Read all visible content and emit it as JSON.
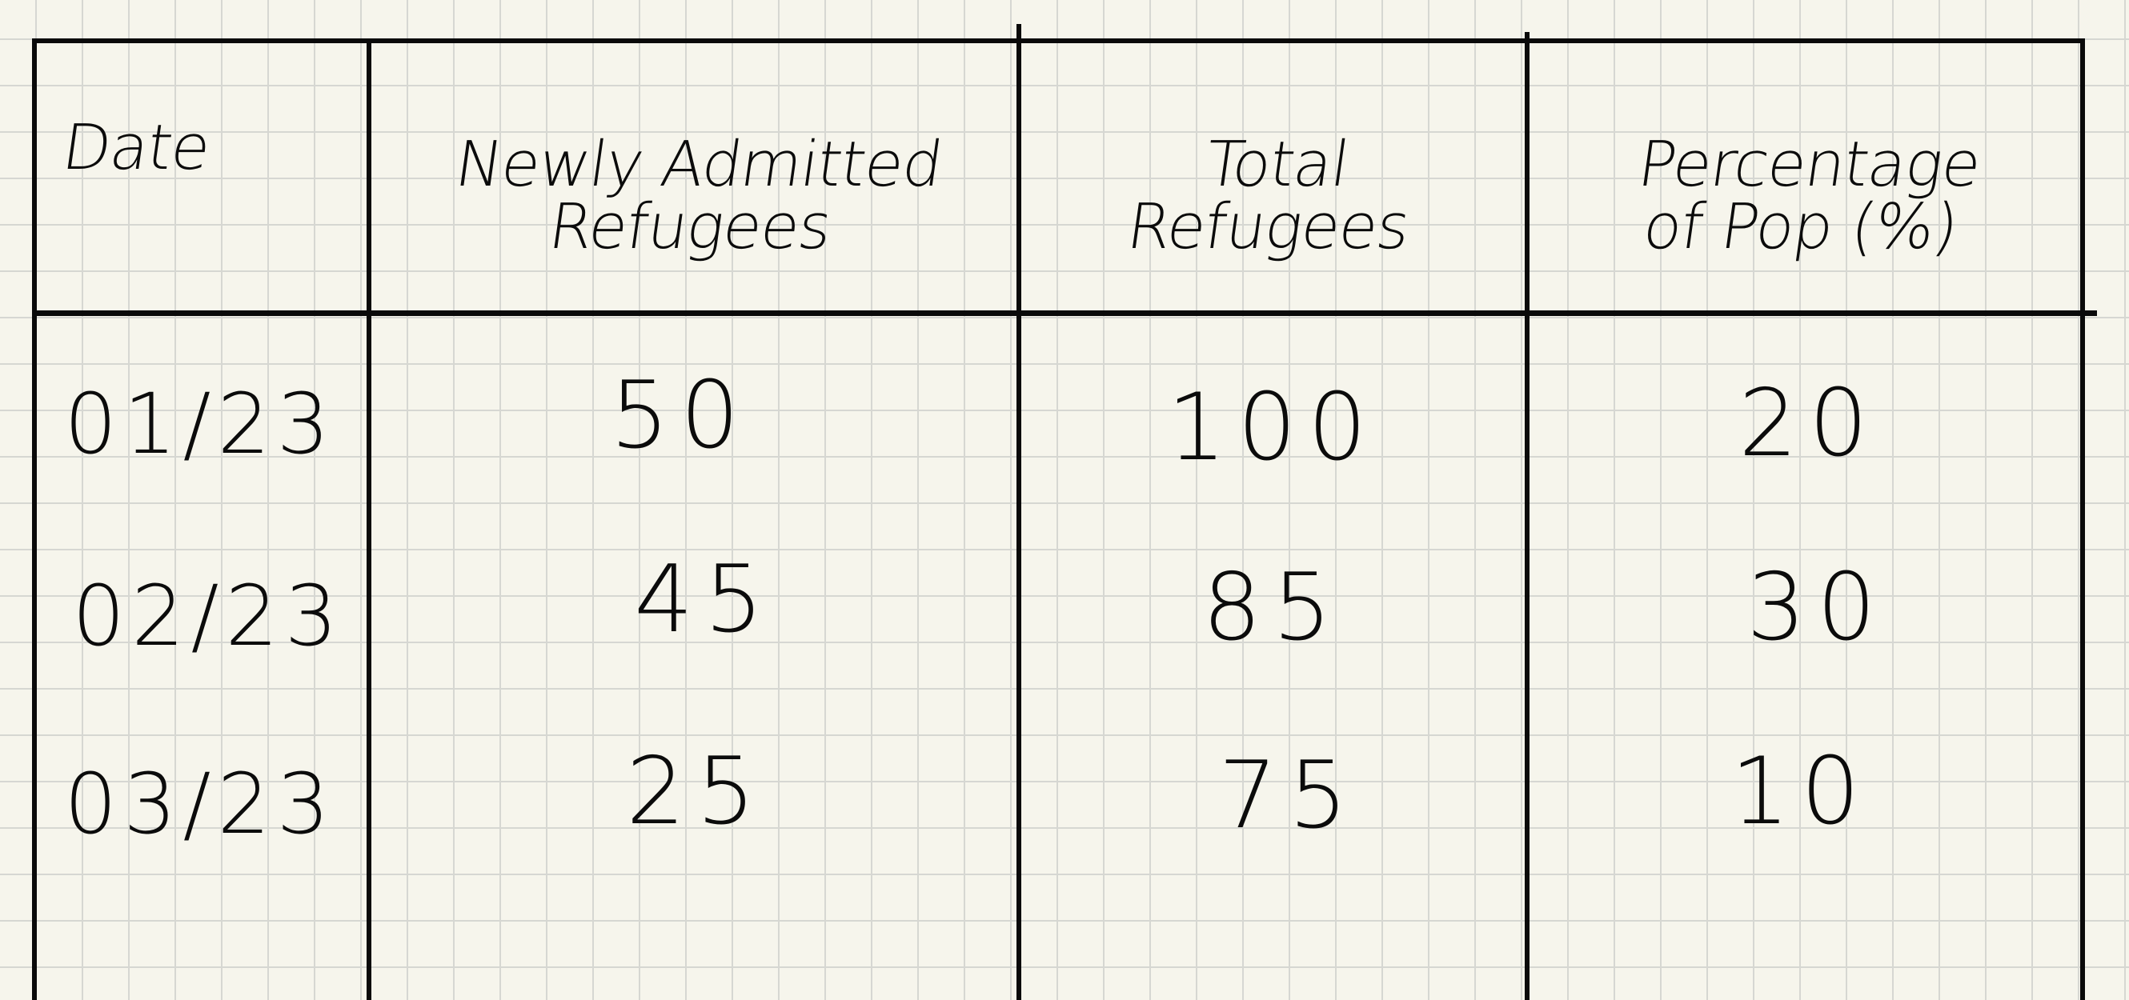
{
  "table": {
    "headers": {
      "date": "Date",
      "newly_line1": "Newly Admitted",
      "newly_line2": "Refugees",
      "total_line1": "Total",
      "total_line2": "Refugees",
      "pct_line1": "Percentage",
      "pct_line2": "of Pop (%)"
    },
    "rows": [
      {
        "date": "01/23",
        "newly_admitted": "50",
        "total": "100",
        "percentage": "20"
      },
      {
        "date": "02/23",
        "newly_admitted": "45",
        "total": "85",
        "percentage": "30"
      },
      {
        "date": "03/23",
        "newly_admitted": "25",
        "total": "75",
        "percentage": "10"
      }
    ]
  },
  "colors": {
    "paper": "#f6f5ec",
    "grid": "#d6d7d2",
    "ink": "#0a0a0a"
  }
}
